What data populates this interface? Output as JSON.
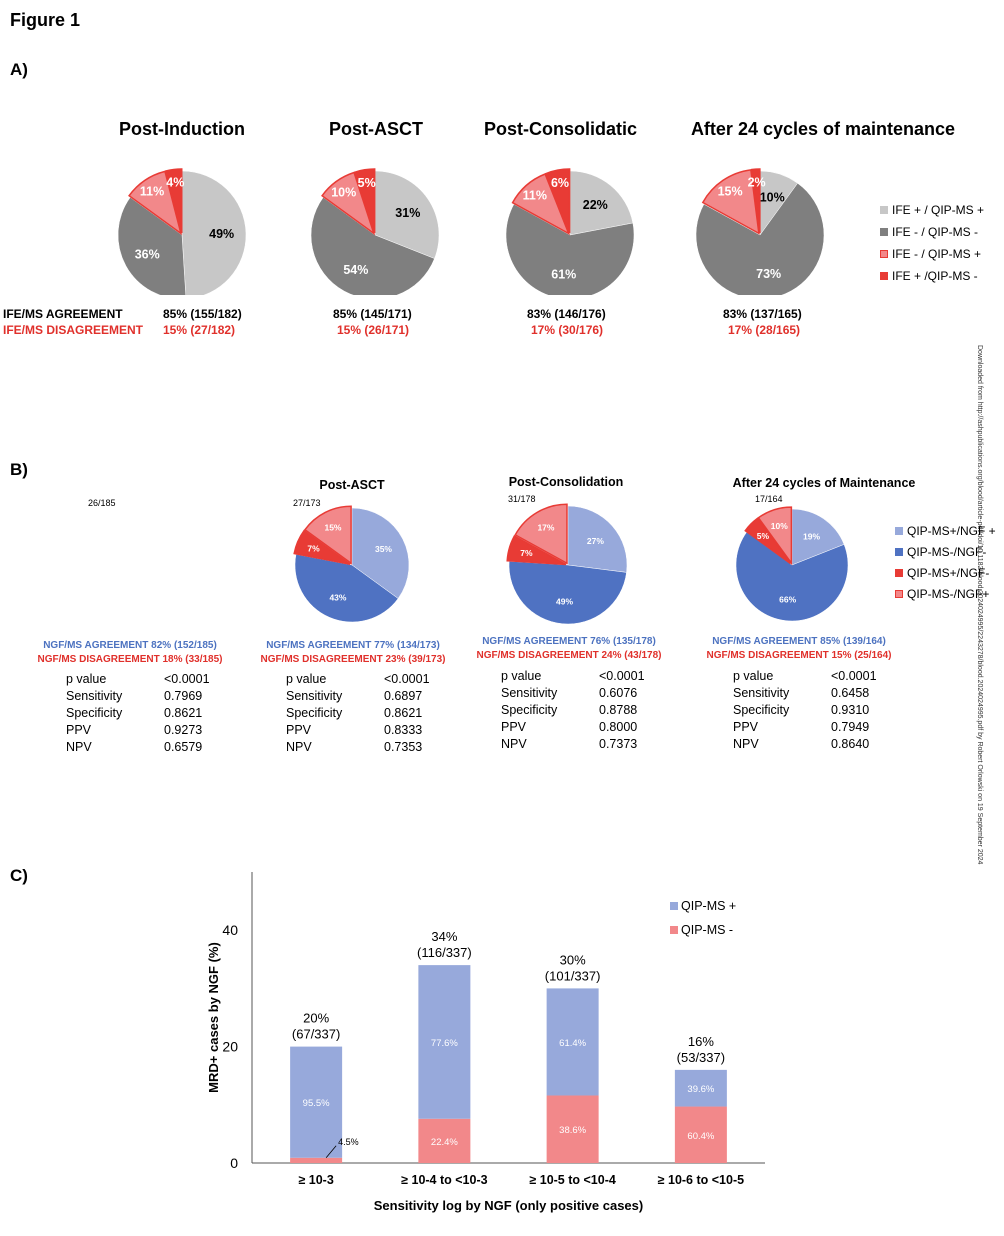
{
  "figure_title": "Figure 1",
  "panels": {
    "a": "A)",
    "b": "B)",
    "c": "C)"
  },
  "side_note": "Downloaded from http://ashpublications.org/blood/article-pdf/doi/10.1182/blood.2024024995/2243278/blood.2024024995.pdf by Robert Orlowski on 19 September 2024",
  "colors": {
    "ife_pos_qip_pos": "#c7c7c7",
    "ife_neg_qip_neg": "#7f7f7f",
    "ife_neg_qip_pos": "#f2888a",
    "ife_pos_qip_neg": "#e83b35",
    "qip_pos_ngf_pos": "#97a9db",
    "qip_neg_ngf_neg": "#4f72c2",
    "qip_pos_ngf_neg": "#e83b35",
    "qip_neg_ngf_pos": "#f2888a"
  },
  "panel_a": {
    "agreement_label": "IFE/MS AGREEMENT",
    "disagreement_label": "IFE/MS DISAGREEMENT",
    "legend": [
      "IFE + / QIP-MS +",
      "IFE - / QIP-MS -",
      "IFE - / QIP-MS +",
      "IFE + /QIP-MS -"
    ],
    "charts": [
      {
        "title": "Post-Induction",
        "agreement": "85% (155/182)",
        "disagreement": "15% (27/182)"
      },
      {
        "title": "Post-ASCT",
        "agreement": "85% (145/171)",
        "disagreement": "15% (26/171)"
      },
      {
        "title": "Post-Consolidatic",
        "agreement": "83% (146/176)",
        "disagreement": "17% (30/176)"
      },
      {
        "title": "After 24 cycles of maintenance",
        "agreement": "83% (137/165)",
        "disagreement": "17% (28/165)"
      }
    ]
  },
  "panel_b": {
    "legend": [
      "QIP-MS+/NGF +",
      "QIP-MS-/NGF-",
      "QIP-MS+/NGF-",
      "QIP-MS-/NGF+"
    ],
    "stat_labels": [
      "p value",
      "Sensitivity",
      "Specificity",
      "PPV",
      "NPV"
    ],
    "charts": [
      {
        "title": "",
        "count": "26/185",
        "agreement": "NGF/MS AGREEMENT 82% (152/185)",
        "disagreement": "NGF/MS DISAGREEMENT 18% (33/185)",
        "stats": [
          "<0.0001",
          "0.7969",
          "0.8621",
          "0.9273",
          "0.6579"
        ]
      },
      {
        "title": "Post-ASCT",
        "count": "27/173",
        "agreement": "NGF/MS AGREEMENT 77% (134/173)",
        "disagreement": "NGF/MS DISAGREEMENT 23% (39/173)",
        "stats": [
          "<0.0001",
          "0.6897",
          "0.8621",
          "0.8333",
          "0.7353"
        ]
      },
      {
        "title": "Post-Consolidation",
        "count": "31/178",
        "agreement": "NGF/MS AGREEMENT 76% (135/178)",
        "disagreement": "NGF/MS DISAGREEMENT 24% (43/178)",
        "stats": [
          "<0.0001",
          "0.6076",
          "0.8788",
          "0.8000",
          "0.7373"
        ]
      },
      {
        "title": "After 24 cycles of Maintenance",
        "count": "17/164",
        "agreement": "NGF/MS AGREEMENT 85% (139/164)",
        "disagreement": "NGF/MS DISAGREEMENT 15% (25/164)",
        "stats": [
          "<0.0001",
          "0.6458",
          "0.9310",
          "0.7949",
          "0.8640"
        ]
      }
    ]
  },
  "chart_data": [
    {
      "type": "pie",
      "title": "Post-Induction",
      "labels": [
        "IFE + / QIP-MS +",
        "IFE - / QIP-MS -",
        "IFE - / QIP-MS +",
        "IFE + /QIP-MS -"
      ],
      "values": [
        49,
        36,
        11,
        4
      ],
      "value_labels": [
        "49%",
        "36%",
        "11%",
        "4%"
      ]
    },
    {
      "type": "pie",
      "title": "Post-ASCT",
      "labels": [
        "IFE + / QIP-MS +",
        "IFE - / QIP-MS -",
        "IFE - / QIP-MS +",
        "IFE + /QIP-MS -"
      ],
      "values": [
        31,
        54,
        10,
        5
      ],
      "value_labels": [
        "31%",
        "54%",
        "10%",
        "5%"
      ]
    },
    {
      "type": "pie",
      "title": "Post-Consolidatic",
      "labels": [
        "IFE + / QIP-MS +",
        "IFE - / QIP-MS -",
        "IFE - / QIP-MS +",
        "IFE + /QIP-MS -"
      ],
      "values": [
        22,
        61,
        11,
        6
      ],
      "value_labels": [
        "22%",
        "61%",
        "11%",
        "6%"
      ]
    },
    {
      "type": "pie",
      "title": "After 24 cycles of maintenance",
      "labels": [
        "IFE + / QIP-MS +",
        "IFE - / QIP-MS -",
        "IFE - / QIP-MS +",
        "IFE + /QIP-MS -"
      ],
      "values": [
        10,
        73,
        15,
        2
      ],
      "value_labels": [
        "10%",
        "73%",
        "15%",
        "2%"
      ]
    },
    {
      "type": "pie",
      "title": "Post-ASCT",
      "labels": [
        "QIP-MS+/NGF +",
        "QIP-MS-/NGF-",
        "QIP-MS+/NGF-",
        "QIP-MS-/NGF+"
      ],
      "values": [
        35,
        43,
        7,
        15
      ],
      "value_labels": [
        "35%",
        "43%",
        "7%",
        "15%"
      ]
    },
    {
      "type": "pie",
      "title": "Post-Consolidation",
      "labels": [
        "QIP-MS+/NGF +",
        "QIP-MS-/NGF-",
        "QIP-MS+/NGF-",
        "QIP-MS-/NGF+"
      ],
      "values": [
        27,
        49,
        7,
        17
      ],
      "value_labels": [
        "27%",
        "49%",
        "7%",
        "17%"
      ]
    },
    {
      "type": "pie",
      "title": "After 24 cycles of Maintenance",
      "labels": [
        "QIP-MS+/NGF +",
        "QIP-MS-/NGF-",
        "QIP-MS+/NGF-",
        "QIP-MS-/NGF+"
      ],
      "values": [
        19,
        66,
        5,
        10
      ],
      "value_labels": [
        "19%",
        "66%",
        "5%",
        "10%"
      ]
    },
    {
      "type": "bar",
      "stacked": true,
      "categories": [
        "≥  10-3",
        "≥  10-4 to <10-3",
        "≥  10-5 to <10-4",
        "≥  10-6 to <10-5"
      ],
      "totals": [
        20,
        34,
        30,
        16
      ],
      "total_labels": [
        "20%\n(67/337)",
        "34%\n(116/337)",
        "30%\n(101/337)",
        "16%\n(53/337)"
      ],
      "series": [
        {
          "name": "QIP-MS +",
          "color": "#97a9db",
          "values": [
            19.1,
            26.4,
            18.4,
            6.3
          ],
          "labels": [
            "95.5%",
            "77.6%",
            "61.4%",
            "39.6%"
          ]
        },
        {
          "name": "QIP-MS -",
          "color": "#f2888a",
          "values": [
            0.9,
            7.6,
            11.6,
            9.7
          ],
          "labels": [
            "4.5%",
            "22.4%",
            "38.6%",
            "60.4%"
          ]
        }
      ],
      "xlabel": "Sensitivity log by NGF (only positive cases)",
      "ylabel": "MRD+ cases by NGF (%)",
      "ylim": [
        0,
        50
      ],
      "yticks": [
        0,
        20,
        40
      ],
      "legend_position": "top-right"
    }
  ]
}
